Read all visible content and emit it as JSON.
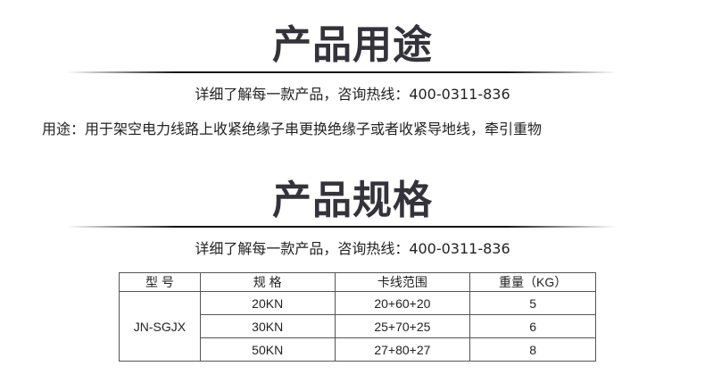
{
  "section1": {
    "title": "产品用途",
    "hotline": "详细了解每一款产品，咨询热线：400-0311-836",
    "usage": "用途：用于架空电力线路上收紧绝缘子串更换绝缘子或者收紧导地线，牵引重物"
  },
  "section2": {
    "title": "产品规格",
    "hotline": "详细了解每一款产品，咨询热线：400-0311-836"
  },
  "table": {
    "headers": [
      "型 号",
      "规 格",
      "卡线范围",
      "重量（KG）"
    ],
    "model": "JN-SGJX",
    "rows": [
      {
        "spec": "20KN",
        "range": "20+60+20",
        "weight": "5"
      },
      {
        "spec": "30KN",
        "range": "25+70+25",
        "weight": "6"
      },
      {
        "spec": "50KN",
        "range": "27+80+27",
        "weight": "8"
      }
    ]
  }
}
